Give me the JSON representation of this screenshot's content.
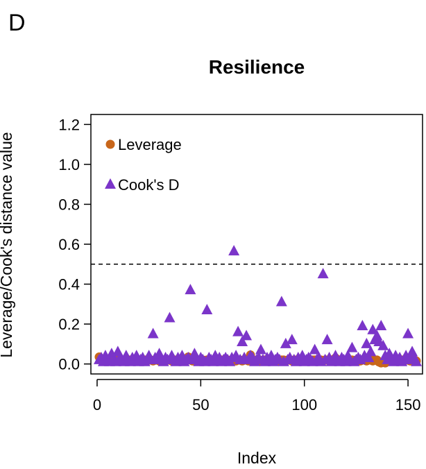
{
  "panel_label": "D",
  "chart_data": {
    "type": "scatter",
    "title": "Resilience",
    "xlabel": "Index",
    "ylabel": "Leverage/Cook's distance value",
    "xlim": [
      -3,
      157
    ],
    "ylim": [
      -0.05,
      1.25
    ],
    "xticks": [
      0,
      50,
      100,
      150
    ],
    "yticks": [
      0.0,
      0.2,
      0.4,
      0.6,
      0.8,
      1.0,
      1.2
    ],
    "xtick_labels": [
      "0",
      "50",
      "100",
      "150"
    ],
    "ytick_labels": [
      "0.0",
      "0.2",
      "0.4",
      "0.6",
      "0.8",
      "1.0",
      "1.2"
    ],
    "threshold": 0.5,
    "legend_position": "top-left",
    "grid": false,
    "series": [
      {
        "name": "Leverage",
        "marker": "circle",
        "color": "#c8661a",
        "x": [
          1,
          2,
          3,
          4,
          5,
          6,
          7,
          8,
          9,
          10,
          11,
          12,
          13,
          14,
          15,
          16,
          17,
          18,
          19,
          20,
          21,
          22,
          23,
          24,
          25,
          26,
          27,
          28,
          29,
          30,
          31,
          32,
          33,
          34,
          35,
          36,
          37,
          38,
          39,
          40,
          41,
          42,
          43,
          44,
          45,
          46,
          47,
          48,
          49,
          50,
          51,
          52,
          53,
          54,
          55,
          56,
          57,
          58,
          59,
          60,
          61,
          62,
          63,
          64,
          65,
          66,
          67,
          68,
          69,
          70,
          71,
          72,
          73,
          74,
          75,
          76,
          77,
          78,
          79,
          80,
          81,
          82,
          83,
          84,
          85,
          86,
          87,
          88,
          89,
          90,
          91,
          92,
          93,
          94,
          95,
          96,
          97,
          98,
          99,
          100,
          101,
          102,
          103,
          104,
          105,
          106,
          107,
          108,
          109,
          110,
          111,
          112,
          113,
          114,
          115,
          116,
          117,
          118,
          119,
          120,
          121,
          122,
          123,
          124,
          125,
          126,
          127,
          128,
          129,
          130,
          131,
          132,
          133,
          134,
          135,
          136,
          137,
          138,
          139,
          140,
          141,
          142,
          143,
          144,
          145,
          146,
          147,
          148,
          149,
          150,
          151,
          152,
          153,
          154
        ],
        "y": [
          0.035,
          0.02,
          0.015,
          0.02,
          0.025,
          0.02,
          0.02,
          0.015,
          0.02,
          0.02,
          0.015,
          0.02,
          0.02,
          0.015,
          0.02,
          0.02,
          0.015,
          0.02,
          0.025,
          0.02,
          0.015,
          0.02,
          0.02,
          0.015,
          0.02,
          0.02,
          0.015,
          0.02,
          0.02,
          0.015,
          0.02,
          0.02,
          0.015,
          0.02,
          0.02,
          0.015,
          0.02,
          0.02,
          0.015,
          0.02,
          0.02,
          0.015,
          0.02,
          0.035,
          0.02,
          0.015,
          0.02,
          0.02,
          0.015,
          0.02,
          0.02,
          0.015,
          0.02,
          0.02,
          0.015,
          0.02,
          0.02,
          0.015,
          0.02,
          0.02,
          0.015,
          0.02,
          0.02,
          0.015,
          0.02,
          0.02,
          0.015,
          0.02,
          0.02,
          0.015,
          0.02,
          0.02,
          0.015,
          0.045,
          0.02,
          0.015,
          0.02,
          0.02,
          0.015,
          0.02,
          0.02,
          0.015,
          0.02,
          0.02,
          0.015,
          0.02,
          0.02,
          0.015,
          0.02,
          0.02,
          0.015,
          0.02,
          0.02,
          0.015,
          0.02,
          0.02,
          0.015,
          0.02,
          0.02,
          0.015,
          0.02,
          0.02,
          0.015,
          0.02,
          0.02,
          0.015,
          0.02,
          0.02,
          0.015,
          0.02,
          0.02,
          0.015,
          0.02,
          0.02,
          0.03,
          0.02,
          0.02,
          0.015,
          0.02,
          0.02,
          0.015,
          0.02,
          0.02,
          0.015,
          0.02,
          0.02,
          0.015,
          0.02,
          0.02,
          0.015,
          0.02,
          0.02,
          0.015,
          0.02,
          0.02,
          0.01,
          0.005,
          0.01,
          0.005,
          0.03,
          0.02,
          0.015,
          0.02,
          0.02,
          0.015,
          0.02,
          0.02,
          0.015,
          0.02,
          0.02,
          0.015,
          0.02,
          0.02,
          0.015
        ]
      },
      {
        "name": "Cook's D",
        "marker": "triangle",
        "color": "#7b35c9",
        "x": [
          1,
          2,
          3,
          4,
          5,
          6,
          7,
          8,
          9,
          10,
          11,
          12,
          13,
          14,
          15,
          16,
          17,
          18,
          19,
          20,
          21,
          22,
          23,
          24,
          25,
          26,
          27,
          28,
          29,
          30,
          31,
          32,
          33,
          34,
          35,
          36,
          37,
          38,
          39,
          40,
          41,
          42,
          43,
          44,
          45,
          46,
          47,
          48,
          49,
          50,
          51,
          52,
          53,
          54,
          55,
          56,
          57,
          58,
          59,
          60,
          61,
          62,
          63,
          64,
          65,
          66,
          67,
          68,
          69,
          70,
          71,
          72,
          73,
          74,
          75,
          76,
          77,
          78,
          79,
          80,
          81,
          82,
          83,
          84,
          85,
          86,
          87,
          88,
          89,
          90,
          91,
          92,
          93,
          94,
          95,
          96,
          97,
          98,
          99,
          100,
          101,
          102,
          103,
          104,
          105,
          106,
          107,
          108,
          109,
          110,
          111,
          112,
          113,
          114,
          115,
          116,
          117,
          118,
          119,
          120,
          121,
          122,
          123,
          124,
          125,
          126,
          127,
          128,
          129,
          130,
          131,
          132,
          133,
          134,
          135,
          136,
          137,
          138,
          139,
          140,
          141,
          142,
          143,
          144,
          145,
          146,
          147,
          148,
          149,
          150,
          151,
          152,
          153,
          154
        ],
        "y": [
          0.02,
          0.03,
          0.01,
          0.04,
          0.02,
          0.01,
          0.05,
          0.02,
          0.01,
          0.06,
          0.03,
          0.02,
          0.01,
          0.04,
          0.02,
          0.01,
          0.03,
          0.02,
          0.04,
          0.01,
          0.02,
          0.03,
          0.01,
          0.02,
          0.04,
          0.02,
          0.15,
          0.03,
          0.02,
          0.05,
          0.02,
          0.01,
          0.03,
          0.02,
          0.23,
          0.04,
          0.02,
          0.01,
          0.03,
          0.02,
          0.04,
          0.01,
          0.02,
          0.03,
          0.37,
          0.02,
          0.05,
          0.02,
          0.01,
          0.03,
          0.02,
          0.01,
          0.27,
          0.03,
          0.02,
          0.01,
          0.04,
          0.02,
          0.03,
          0.01,
          0.02,
          0.03,
          0.02,
          0.01,
          0.03,
          0.565,
          0.04,
          0.16,
          0.02,
          0.11,
          0.03,
          0.14,
          0.02,
          0.04,
          0.03,
          0.01,
          0.02,
          0.03,
          0.07,
          0.02,
          0.01,
          0.03,
          0.02,
          0.04,
          0.01,
          0.02,
          0.03,
          0.02,
          0.31,
          0.01,
          0.1,
          0.02,
          0.03,
          0.12,
          0.02,
          0.01,
          0.03,
          0.02,
          0.04,
          0.01,
          0.02,
          0.03,
          0.02,
          0.01,
          0.07,
          0.02,
          0.03,
          0.01,
          0.45,
          0.02,
          0.12,
          0.03,
          0.01,
          0.02,
          0.04,
          0.02,
          0.01,
          0.03,
          0.02,
          0.01,
          0.04,
          0.02,
          0.08,
          0.01,
          0.02,
          0.03,
          0.02,
          0.19,
          0.04,
          0.1,
          0.03,
          0.06,
          0.17,
          0.12,
          0.14,
          0.11,
          0.19,
          0.09,
          0.04,
          0.02,
          0.05,
          0.03,
          0.01,
          0.04,
          0.02,
          0.03,
          0.01,
          0.02,
          0.04,
          0.15,
          0.02,
          0.06,
          0.03,
          0.01
        ]
      }
    ]
  }
}
